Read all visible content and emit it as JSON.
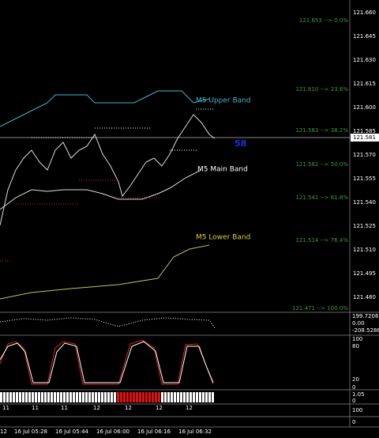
{
  "price_axis": {
    "ticks": [
      "121.660",
      "121.645",
      "121.630",
      "121.615",
      "121.600",
      "121.585",
      "121.570",
      "121.555",
      "121.540",
      "121.525",
      "121.510",
      "121.495",
      "121.480"
    ],
    "current": "121.581"
  },
  "fib_levels": [
    "121.653 --> 0.0%",
    "121.610 --> 23.6%",
    "121.583 --> 38.2%",
    "121.562 --> 50.0%",
    "121.541 --> 61.8%",
    "121.514 --> 76.4%",
    "121.471 --> 100.0%"
  ],
  "bands": {
    "upper": "M5 Upper Band",
    "main": "M5 Main Band",
    "lower": "M5 Lower Band"
  },
  "counter": "58",
  "indicators": {
    "cci": [
      "199.7206",
      "0.00",
      "-208.5286"
    ],
    "stoch": [
      "100",
      "80",
      "20",
      "0"
    ],
    "bar": [
      "1.05",
      "0"
    ],
    "extra": [
      "100",
      "0"
    ]
  },
  "sub_axis": [
    "11",
    "11",
    "11",
    "12",
    "12",
    "12",
    "12"
  ],
  "time_axis": [
    "12",
    "16 Jul 05:28",
    "16 Jul 05:44",
    "16 Jul 06:00",
    "16 Jul 06:16",
    "16 Jul 06:32"
  ]
}
